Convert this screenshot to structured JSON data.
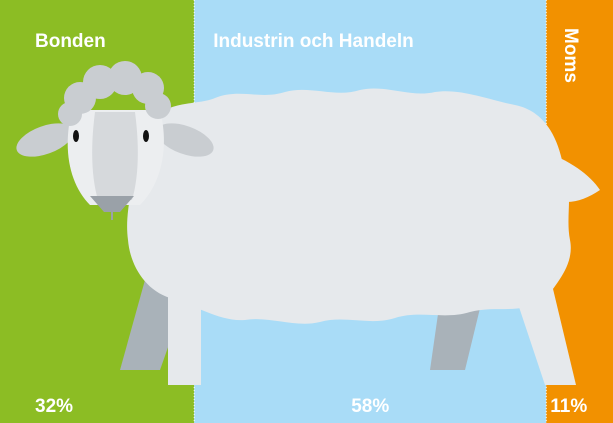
{
  "chart_data": {
    "type": "bar",
    "categories": [
      "Bonden",
      "Industrin och Handeln",
      "Moms"
    ],
    "values": [
      32,
      58,
      11
    ],
    "value_labels": [
      "32%",
      "58%",
      "11%"
    ],
    "colors": [
      "#8cbd24",
      "#a9dcf7",
      "#f29100"
    ]
  }
}
